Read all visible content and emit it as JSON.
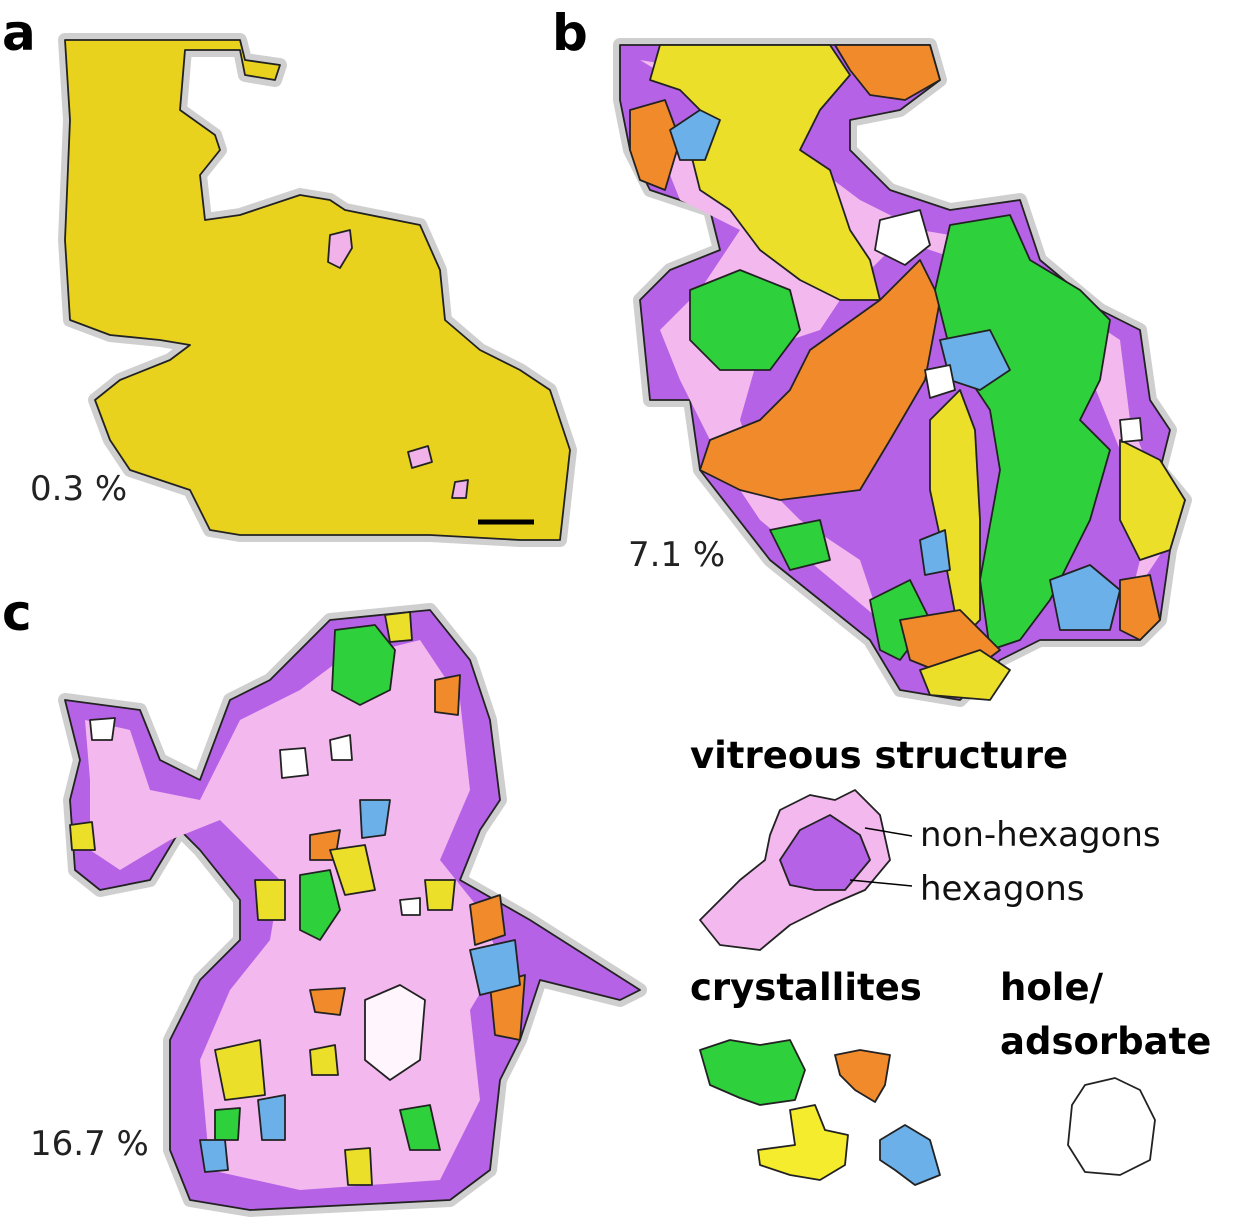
{
  "panels": [
    {
      "label": "a",
      "defect_label": "0.3 %"
    },
    {
      "label": "b",
      "defect_label": "7.1 %"
    },
    {
      "label": "c",
      "defect_label": "16.7 %"
    }
  ],
  "legend": {
    "vitreous_title": "vitreous structure",
    "non_hexagons": "non-hexagons",
    "hexagons": "hexagons",
    "crystallites_title": "crystallites",
    "hole_title": [
      "hole/",
      "adsorbate"
    ]
  }
}
